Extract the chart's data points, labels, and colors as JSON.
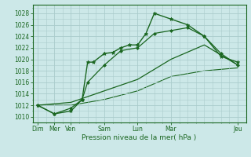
{
  "bg_color": "#cce8e8",
  "grid_color": "#aacccc",
  "line_color": "#1a6620",
  "title": "Pression niveau de la mer( hPa )",
  "ylim": [
    1009,
    1029.5
  ],
  "yticks": [
    1010,
    1012,
    1014,
    1016,
    1018,
    1020,
    1022,
    1024,
    1026,
    1028
  ],
  "xlim": [
    -0.3,
    12.5
  ],
  "major_x_pos": [
    0,
    1,
    2,
    4,
    6,
    8,
    12
  ],
  "major_x_labels": [
    "Dim",
    "Mer",
    "Ven",
    "Sam",
    "Lun",
    "Mar",
    "Jeu"
  ],
  "lines": [
    {
      "x": [
        0,
        1,
        2,
        2.67,
        3.0,
        3.33,
        4,
        4.5,
        5,
        5.5,
        6,
        6.5,
        7,
        8,
        9,
        10,
        11,
        12
      ],
      "y": [
        1012,
        1010.5,
        1011,
        1013,
        1019.5,
        1019.5,
        1021,
        1021.2,
        1022,
        1022.5,
        1022.5,
        1024.5,
        1028,
        1027,
        1026,
        1024,
        1020.5,
        1019.5
      ],
      "marker": "*",
      "markersize": 3.5,
      "lw": 1.0,
      "zorder": 4
    },
    {
      "x": [
        0,
        1,
        2,
        2.67,
        3,
        4,
        5,
        6,
        7,
        8,
        9,
        10,
        11,
        12
      ],
      "y": [
        1012,
        1010.5,
        1011.5,
        1013,
        1016,
        1019,
        1021.5,
        1022,
        1024.5,
        1025,
        1025.5,
        1024,
        1021,
        1019
      ],
      "marker": "D",
      "markersize": 2.0,
      "lw": 0.9,
      "zorder": 3
    },
    {
      "x": [
        0,
        2,
        4,
        6,
        8,
        10,
        12
      ],
      "y": [
        1012,
        1012.5,
        1014.5,
        1016.5,
        1020,
        1022.5,
        1019
      ],
      "marker": null,
      "markersize": null,
      "lw": 0.9,
      "zorder": 2
    },
    {
      "x": [
        0,
        2,
        4,
        6,
        8,
        10,
        12
      ],
      "y": [
        1012,
        1012,
        1013,
        1014.5,
        1017,
        1018,
        1018.5
      ],
      "marker": null,
      "markersize": null,
      "lw": 0.8,
      "zorder": 1
    }
  ]
}
